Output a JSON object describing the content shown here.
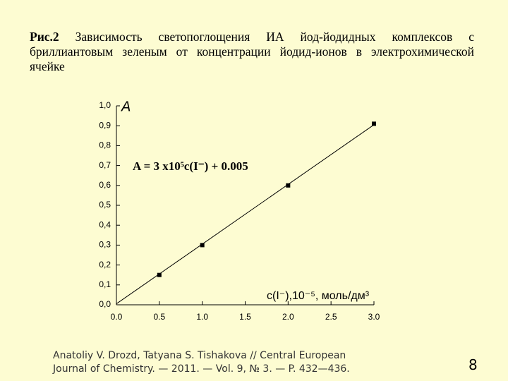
{
  "header": {
    "figure_label": "Рис.2",
    "title": "Зависимость светопоглощения ИА йод-йодидных комплексов с бриллиантовым зеленым от концентрации йодид-ионов в электрохимической ячейке"
  },
  "chart_data": {
    "type": "scatter",
    "y_label": "A",
    "x_label": "с(I⁻),10⁻⁵, моль/дм³",
    "annotation": "A = 3 x10⁵c(I⁻) + 0.005",
    "x": [
      0.5,
      1.0,
      2.0,
      3.0
    ],
    "values": [
      0.15,
      0.3,
      0.6,
      0.91
    ],
    "color": "#000000",
    "fit": {
      "x": [
        0,
        3.0
      ],
      "values": [
        0.005,
        0.905
      ]
    },
    "xlim": [
      0,
      3.0
    ],
    "ylim": [
      0,
      1.0
    ],
    "xticks": [
      {
        "value": 0,
        "label": "0.0"
      },
      {
        "value": 0.5,
        "label": "0.5"
      },
      {
        "value": 1.0,
        "label": "1.0"
      },
      {
        "value": 1.5,
        "label": "1.5"
      },
      {
        "value": 2.0,
        "label": "2.0"
      },
      {
        "value": 2.5,
        "label": "2.5"
      },
      {
        "value": 3.0,
        "label": "3.0"
      }
    ],
    "yticks": [
      {
        "value": 0,
        "label": "0,0"
      },
      {
        "value": 0.1,
        "label": "0,1"
      },
      {
        "value": 0.2,
        "label": "0,2"
      },
      {
        "value": 0.3,
        "label": "0,3"
      },
      {
        "value": 0.4,
        "label": "0,4"
      },
      {
        "value": 0.5,
        "label": "0,5"
      },
      {
        "value": 0.6,
        "label": "0,6"
      },
      {
        "value": 0.7,
        "label": "0,7"
      },
      {
        "value": 0.8,
        "label": "0,8"
      },
      {
        "value": 0.9,
        "label": "0,9"
      },
      {
        "value": 1.0,
        "label": "1,0"
      }
    ]
  },
  "footer": {
    "citation_line1": "Anatoliy V. Drozd, Tatyana S. Tishakova  // Central European",
    "citation_line2": "Journal of Chemistry. — 2011. — Vol. 9, № 3. — P. 432—436.",
    "page_number": "8"
  }
}
